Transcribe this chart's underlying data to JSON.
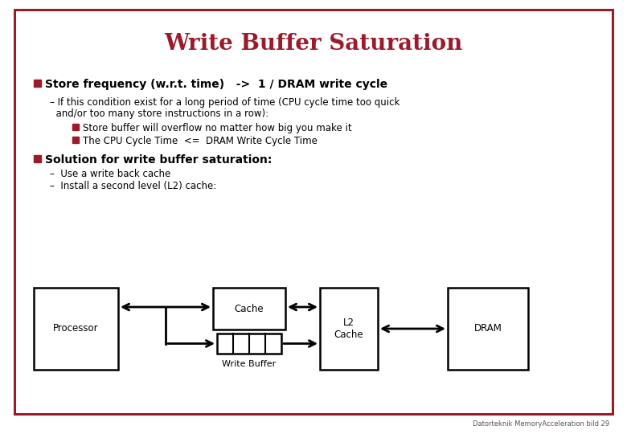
{
  "title": "Write Buffer Saturation",
  "title_color": "#9B1B2A",
  "title_fontsize": 20,
  "background_color": "#FFFFFF",
  "border_color": "#9B1B2A",
  "text_color": "#000000",
  "bullet_color": "#9B1B2A",
  "bullet1_main": "Store frequency (w.r.t. time)   ->  1 / DRAM write cycle",
  "bullet1_sub1_line1": "– If this condition exist for a long period of time (CPU cycle time too quick",
  "bullet1_sub1_line2": "  and/or too many store instructions in a row):",
  "bullet1_sub1a": "Store buffer will overflow no matter how big you make it",
  "bullet1_sub1b": "The CPU Cycle Time  <=  DRAM Write Cycle Time",
  "bullet2_main": "Solution for write buffer saturation:",
  "bullet2_sub1": "–  Use a write back cache",
  "bullet2_sub2": "–  Install a second level (L2) cache:",
  "footer": "Datorteknik MemoryAcceleration bild 29",
  "diagram": {
    "processor_label": "Processor",
    "cache_label": "Cache",
    "l2_label": "L2\nCache",
    "dram_label": "DRAM",
    "write_buffer_label": "Write Buffer"
  }
}
